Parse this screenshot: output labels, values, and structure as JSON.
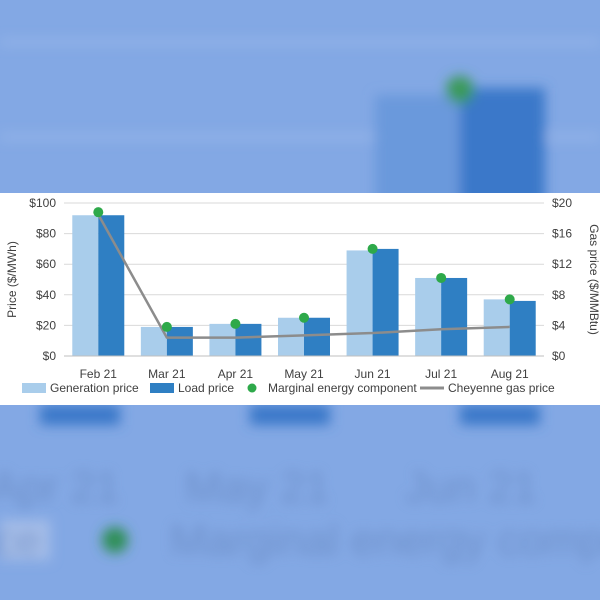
{
  "colors": {
    "generation": "#a9cdeb",
    "load": "#2f7fc3",
    "marginal": "#2ea94a",
    "gas": "#8c8c8c",
    "grid": "#d9d9d9",
    "backdrop": "#7fa4e2"
  },
  "chart_data": {
    "type": "bar",
    "title": "",
    "categories": [
      "Feb 21",
      "Mar 21",
      "Apr 21",
      "May 21",
      "Jun 21",
      "Jul 21",
      "Aug 21"
    ],
    "ylabel": "Price ($/MWh)",
    "y2label": "Gas price ($/MMBtu)",
    "ylim": [
      0,
      100
    ],
    "y2lim": [
      0,
      20
    ],
    "yticks": [
      "$0",
      "$20",
      "$40",
      "$60",
      "$80",
      "$100"
    ],
    "y2ticks": [
      "$0",
      "$4",
      "$8",
      "$12",
      "$16",
      "$20"
    ],
    "grid": true,
    "legend_position": "bottom",
    "series": [
      {
        "name": "Generation price",
        "kind": "bar",
        "values": [
          92,
          19,
          21,
          25,
          69,
          51,
          37
        ]
      },
      {
        "name": "Load price",
        "kind": "bar",
        "values": [
          92,
          19,
          21,
          25,
          70,
          51,
          36
        ]
      },
      {
        "name": "Marginal energy component",
        "kind": "marker",
        "values": [
          94,
          19,
          21,
          25,
          70,
          51,
          37
        ]
      },
      {
        "name": "Cheyenne gas price",
        "kind": "line",
        "axis": "secondary",
        "values": [
          18.5,
          2.4,
          2.4,
          2.7,
          3.0,
          3.5,
          3.8
        ]
      }
    ]
  }
}
